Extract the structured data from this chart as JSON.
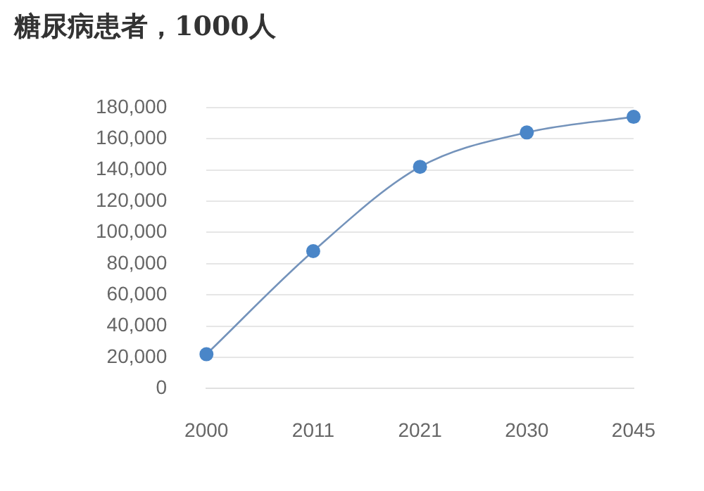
{
  "chart_data": {
    "type": "line",
    "title": "糖尿病患者，1000人",
    "categories": [
      "2000",
      "2011",
      "2021",
      "2030",
      "2045"
    ],
    "series": [
      {
        "color": "#4a86c8",
        "values": [
          22000,
          88000,
          142000,
          164000,
          174000
        ]
      }
    ],
    "ylim": [
      0,
      180000
    ],
    "yticks": [
      {
        "value": 0,
        "label": "0"
      },
      {
        "value": 20000,
        "label": "20,000"
      },
      {
        "value": 40000,
        "label": "40,000"
      },
      {
        "value": 60000,
        "label": "60,000"
      },
      {
        "value": 80000,
        "label": "80,000"
      },
      {
        "value": 100000,
        "label": "100,000"
      },
      {
        "value": 120000,
        "label": "120,000"
      },
      {
        "value": 140000,
        "label": "140,000"
      },
      {
        "value": 160000,
        "label": "160,000"
      },
      {
        "value": 180000,
        "label": "180,000"
      }
    ],
    "grid": "y",
    "legend": false,
    "marker": "circle",
    "line_style": "solid"
  }
}
